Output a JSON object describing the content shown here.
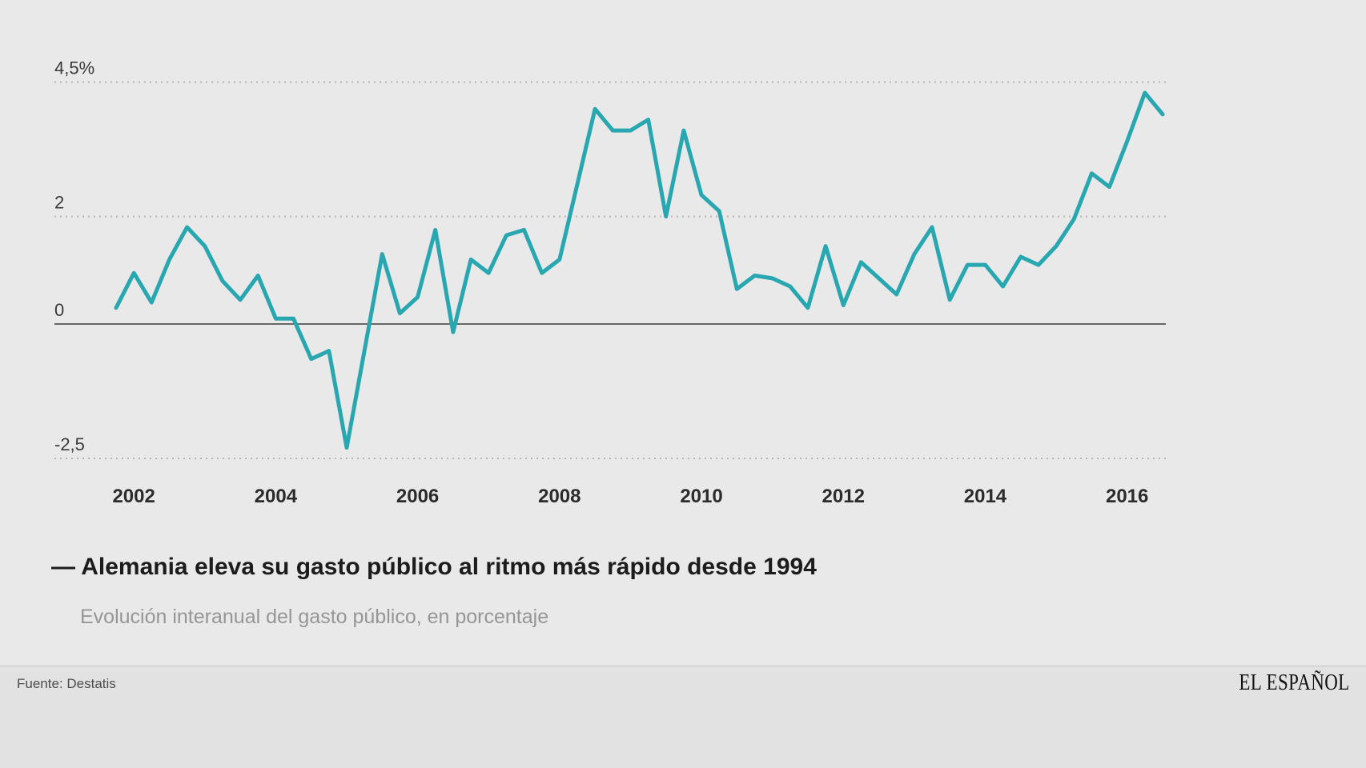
{
  "page": {
    "background": "#e9e9e9",
    "footer_background": "#e2e2e2"
  },
  "chart": {
    "line_color": "#29a7b0",
    "grid_color": "#b5b5b5",
    "axis_color": "#3c3c3c",
    "y_ticks": [
      {
        "label": "4,5%",
        "value": 4.5,
        "style": "dotted"
      },
      {
        "label": "2",
        "value": 2,
        "style": "dotted"
      },
      {
        "label": "0",
        "value": 0,
        "style": "solid"
      },
      {
        "label": "-2,5",
        "value": -2.5,
        "style": "dotted"
      }
    ],
    "x_ticks": [
      {
        "label": "2002",
        "year": 2002
      },
      {
        "label": "2004",
        "year": 2004
      },
      {
        "label": "2006",
        "year": 2006
      },
      {
        "label": "2008",
        "year": 2008
      },
      {
        "label": "2010",
        "year": 2010
      },
      {
        "label": "2012",
        "year": 2012
      },
      {
        "label": "2014",
        "year": 2014
      },
      {
        "label": "2016",
        "year": 2016
      }
    ]
  },
  "chart_data": {
    "type": "line",
    "title": "Alemania eleva su gasto público al ritmo más rápido desde 1994",
    "subtitle": "Evolución interanual del gasto público, en porcentaje",
    "source": "Destatis",
    "xlabel": "",
    "ylabel": "Evolución interanual del gasto público (%)",
    "x_unit": "trimestre",
    "x_tick_labels": [
      "2002",
      "2004",
      "2006",
      "2008",
      "2010",
      "2012",
      "2014",
      "2016"
    ],
    "y_tick_labels": [
      "4,5%",
      "2",
      "0",
      "-2,5"
    ],
    "y_gridlines": [
      4.5,
      2,
      0,
      -2.5
    ],
    "ylim": [
      -2.9,
      4.9
    ],
    "grid": "horizontal dotted, solid zero line",
    "legend": "none",
    "x": [
      "2001-T4",
      "2002-T1",
      "2002-T2",
      "2002-T3",
      "2002-T4",
      "2003-T1",
      "2003-T2",
      "2003-T3",
      "2003-T4",
      "2004-T1",
      "2004-T2",
      "2004-T3",
      "2004-T4",
      "2005-T1",
      "2005-T2",
      "2005-T3",
      "2005-T4",
      "2006-T1",
      "2006-T2",
      "2006-T3",
      "2006-T4",
      "2007-T1",
      "2007-T2",
      "2007-T3",
      "2007-T4",
      "2008-T1",
      "2008-T2",
      "2008-T3",
      "2008-T4",
      "2009-T1",
      "2009-T2",
      "2009-T3",
      "2009-T4",
      "2010-T1",
      "2010-T2",
      "2010-T3",
      "2010-T4",
      "2011-T1",
      "2011-T2",
      "2011-T3",
      "2011-T4",
      "2012-T1",
      "2012-T2",
      "2012-T3",
      "2012-T4",
      "2013-T1",
      "2013-T2",
      "2013-T3",
      "2013-T4",
      "2014-T1",
      "2014-T2",
      "2014-T3",
      "2014-T4",
      "2015-T1",
      "2015-T2",
      "2015-T3",
      "2015-T4",
      "2016-T1",
      "2016-T2",
      "2016-T3"
    ],
    "series": [
      {
        "name": "Gasto público, variación interanual (%)",
        "values": [
          0.3,
          0.95,
          0.4,
          1.2,
          1.8,
          1.45,
          0.8,
          0.45,
          0.9,
          0.1,
          0.1,
          -0.65,
          -0.5,
          -2.3,
          -0.5,
          1.3,
          0.2,
          0.5,
          1.75,
          -0.15,
          1.2,
          0.95,
          1.65,
          1.75,
          0.95,
          1.2,
          2.6,
          4.0,
          3.6,
          3.6,
          3.8,
          2.0,
          3.6,
          2.4,
          2.1,
          0.65,
          0.9,
          0.85,
          0.7,
          0.3,
          1.45,
          0.35,
          1.15,
          0.85,
          0.55,
          1.3,
          1.8,
          0.45,
          1.1,
          1.1,
          0.7,
          1.25,
          1.1,
          1.45,
          1.95,
          2.8,
          2.55,
          3.4,
          4.3,
          3.9
        ]
      }
    ]
  },
  "caption": {
    "title": "— Alemania eleva su gasto público al ritmo más rápido desde 1994",
    "subtitle": "Evolución interanual del gasto público, en porcentaje"
  },
  "footer": {
    "source": "Fuente: Destatis",
    "brand": "EL ESPAÑOL"
  }
}
